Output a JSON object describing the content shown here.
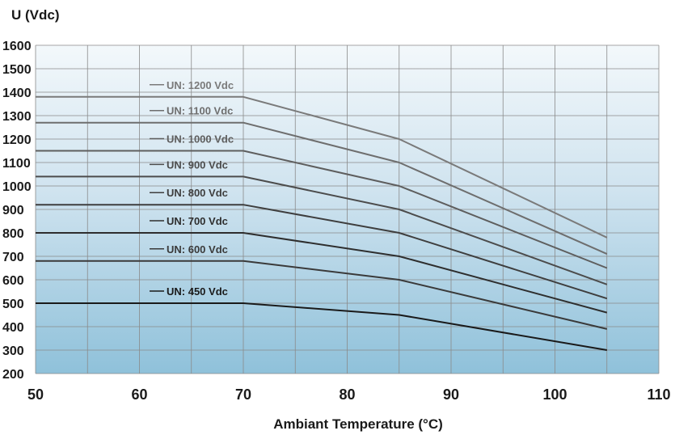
{
  "chart_data": {
    "type": "line",
    "title": "",
    "ylabel": "U (Vdc)",
    "xlabel": "Ambiant Temperature (°C)",
    "xlim": [
      50,
      110
    ],
    "ylim": [
      200,
      1600
    ],
    "x_ticks": [
      50,
      60,
      70,
      80,
      90,
      100,
      110
    ],
    "y_ticks": [
      200,
      300,
      400,
      500,
      600,
      700,
      800,
      900,
      1000,
      1100,
      1200,
      1300,
      1400,
      1500,
      1600
    ],
    "x_minor_grid": 5,
    "grid": true,
    "background": "light-to-dark blue gradient",
    "series": [
      {
        "name": "UN: 1200 Vdc",
        "color": "#7a7a7a",
        "x": [
          50,
          70,
          85,
          105
        ],
        "y": [
          1380,
          1380,
          1200,
          780
        ]
      },
      {
        "name": "UN: 1100 Vdc",
        "color": "#6e6e6e",
        "x": [
          50,
          70,
          85,
          105
        ],
        "y": [
          1270,
          1270,
          1100,
          710
        ]
      },
      {
        "name": "UN: 1000 Vdc",
        "color": "#5e5e5e",
        "x": [
          50,
          70,
          85,
          105
        ],
        "y": [
          1150,
          1150,
          1000,
          650
        ]
      },
      {
        "name": "UN: 900 Vdc",
        "color": "#4c4c4c",
        "x": [
          50,
          70,
          85,
          105
        ],
        "y": [
          1040,
          1040,
          900,
          580
        ]
      },
      {
        "name": "UN: 800 Vdc",
        "color": "#3e3e3e",
        "x": [
          50,
          70,
          85,
          105
        ],
        "y": [
          920,
          920,
          800,
          520
        ]
      },
      {
        "name": "UN: 700 Vdc",
        "color": "#2e2e2e",
        "x": [
          50,
          70,
          85,
          105
        ],
        "y": [
          800,
          800,
          700,
          460
        ]
      },
      {
        "name": "UN: 600 Vdc",
        "color": "#3a3a3a",
        "x": [
          50,
          70,
          85,
          105
        ],
        "y": [
          680,
          680,
          600,
          390
        ]
      },
      {
        "name": "UN: 450 Vdc",
        "color": "#1a1a1a",
        "x": [
          50,
          70,
          85,
          105
        ],
        "y": [
          500,
          500,
          450,
          300
        ]
      }
    ]
  }
}
